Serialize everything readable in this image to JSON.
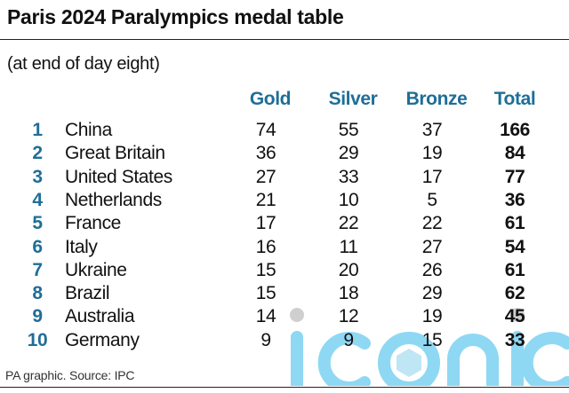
{
  "chart_data": {
    "type": "table",
    "title": "Paris 2024 Paralympics medal table",
    "subtitle": "(at end of day eight)",
    "columns": [
      "Gold",
      "Silver",
      "Bronze",
      "Total"
    ],
    "rows": [
      {
        "rank": "1",
        "country": "China",
        "gold": "74",
        "silver": "55",
        "bronze": "37",
        "total": "166"
      },
      {
        "rank": "2",
        "country": "Great Britain",
        "gold": "36",
        "silver": "29",
        "bronze": "19",
        "total": "84"
      },
      {
        "rank": "3",
        "country": "United States",
        "gold": "27",
        "silver": "33",
        "bronze": "17",
        "total": "77"
      },
      {
        "rank": "4",
        "country": "Netherlands",
        "gold": "21",
        "silver": "10",
        "bronze": "5",
        "total": "36"
      },
      {
        "rank": "5",
        "country": "France",
        "gold": "17",
        "silver": "22",
        "bronze": "22",
        "total": "61"
      },
      {
        "rank": "6",
        "country": "Italy",
        "gold": "16",
        "silver": "11",
        "bronze": "27",
        "total": "54"
      },
      {
        "rank": "7",
        "country": "Ukraine",
        "gold": "15",
        "silver": "20",
        "bronze": "26",
        "total": "61"
      },
      {
        "rank": "8",
        "country": "Brazil",
        "gold": "15",
        "silver": "18",
        "bronze": "29",
        "total": "62"
      },
      {
        "rank": "9",
        "country": "Australia",
        "gold": "14",
        "silver": "12",
        "bronze": "19",
        "total": "45"
      },
      {
        "rank": "10",
        "country": "Germany",
        "gold": "9",
        "silver": "9",
        "bronze": "15",
        "total": "33"
      }
    ],
    "source": "PA graphic. Source: IPC"
  },
  "watermark": "iconic",
  "colors": {
    "accent": "#1f6e97",
    "watermark": "#5ec8f0"
  }
}
